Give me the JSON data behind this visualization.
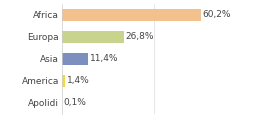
{
  "categories": [
    "Africa",
    "Europa",
    "Asia",
    "America",
    "Apolidi"
  ],
  "values": [
    60.2,
    26.8,
    11.4,
    1.4,
    0.1
  ],
  "labels": [
    "60,2%",
    "26,8%",
    "11,4%",
    "1,4%",
    "0,1%"
  ],
  "bar_colors": [
    "#f2c18e",
    "#c8d48e",
    "#7d8fbf",
    "#f0d84a",
    "#c0c0c0"
  ],
  "background_color": "#ffffff",
  "label_fontsize": 6.5,
  "tick_fontsize": 6.5,
  "xlim": [
    0,
    80
  ],
  "bar_height": 0.55
}
